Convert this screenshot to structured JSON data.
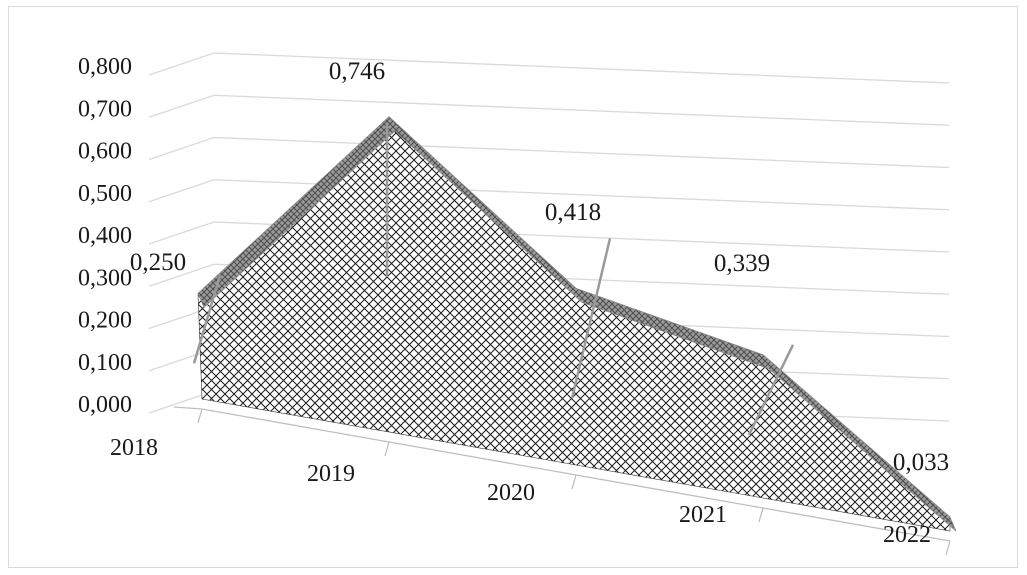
{
  "chart_data": {
    "type": "area",
    "title": "",
    "xlabel": "",
    "ylabel": "",
    "categories": [
      "2018",
      "2019",
      "2020",
      "2021",
      "2022"
    ],
    "values": [
      0.25,
      0.746,
      0.418,
      0.339,
      0.033
    ],
    "value_labels": [
      "0,250",
      "0,746",
      "0,418",
      "0,339",
      "0,033"
    ],
    "y_ticks": [
      0,
      0.1,
      0.2,
      0.3,
      0.4,
      0.5,
      0.6,
      0.7,
      0.8
    ],
    "y_tick_labels": [
      "0,000",
      "0,100",
      "0,200",
      "0,300",
      "0,400",
      "0,500",
      "0,600",
      "0,700",
      "0,800"
    ],
    "ylim": [
      0,
      0.8
    ],
    "grid": true,
    "legend": "none",
    "style": "3d-area",
    "fill_pattern": "crosshatch",
    "colors": {
      "area_fill": "#ffffff",
      "hatch": "#1a1a1a",
      "top_edge": "#8c8c8c",
      "gridline": "#d9d9d9",
      "leader": "#9a9a9a"
    }
  }
}
